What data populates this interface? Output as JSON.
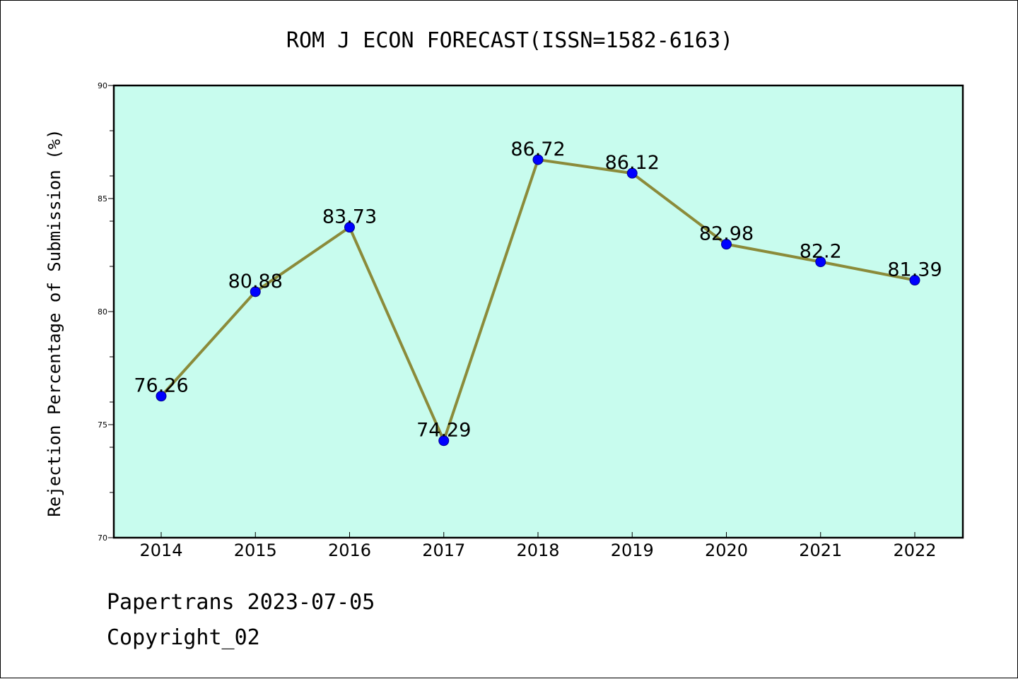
{
  "chart_data": {
    "type": "line",
    "title": "ROM J ECON FORECAST(ISSN=1582-6163)",
    "xlabel": "",
    "ylabel": "Rejection Percentage of Submission (%)",
    "categories": [
      "2014",
      "2015",
      "2016",
      "2017",
      "2018",
      "2019",
      "2020",
      "2021",
      "2022"
    ],
    "values": [
      76.26,
      80.88,
      83.73,
      74.29,
      86.72,
      86.12,
      82.98,
      82.2,
      81.39
    ],
    "data_labels": [
      "76.26",
      "80.88",
      "83.73",
      "74.29",
      "86.72",
      "86.12",
      "82.98",
      "82.2",
      "81.39"
    ],
    "ylim": [
      70,
      90
    ],
    "yticks": [
      70,
      75,
      80,
      85,
      90
    ],
    "ytick_labels": [
      "70",
      "75",
      "80",
      "85",
      "90"
    ],
    "grid": false,
    "legend": "none"
  },
  "colors": {
    "plot_background": "#c8fcee",
    "line": "#8b8b3a",
    "marker": "#0000ff",
    "axes": "#000000"
  },
  "footer": {
    "line1": "Papertrans 2023-07-05",
    "line2": "Copyright_02"
  }
}
